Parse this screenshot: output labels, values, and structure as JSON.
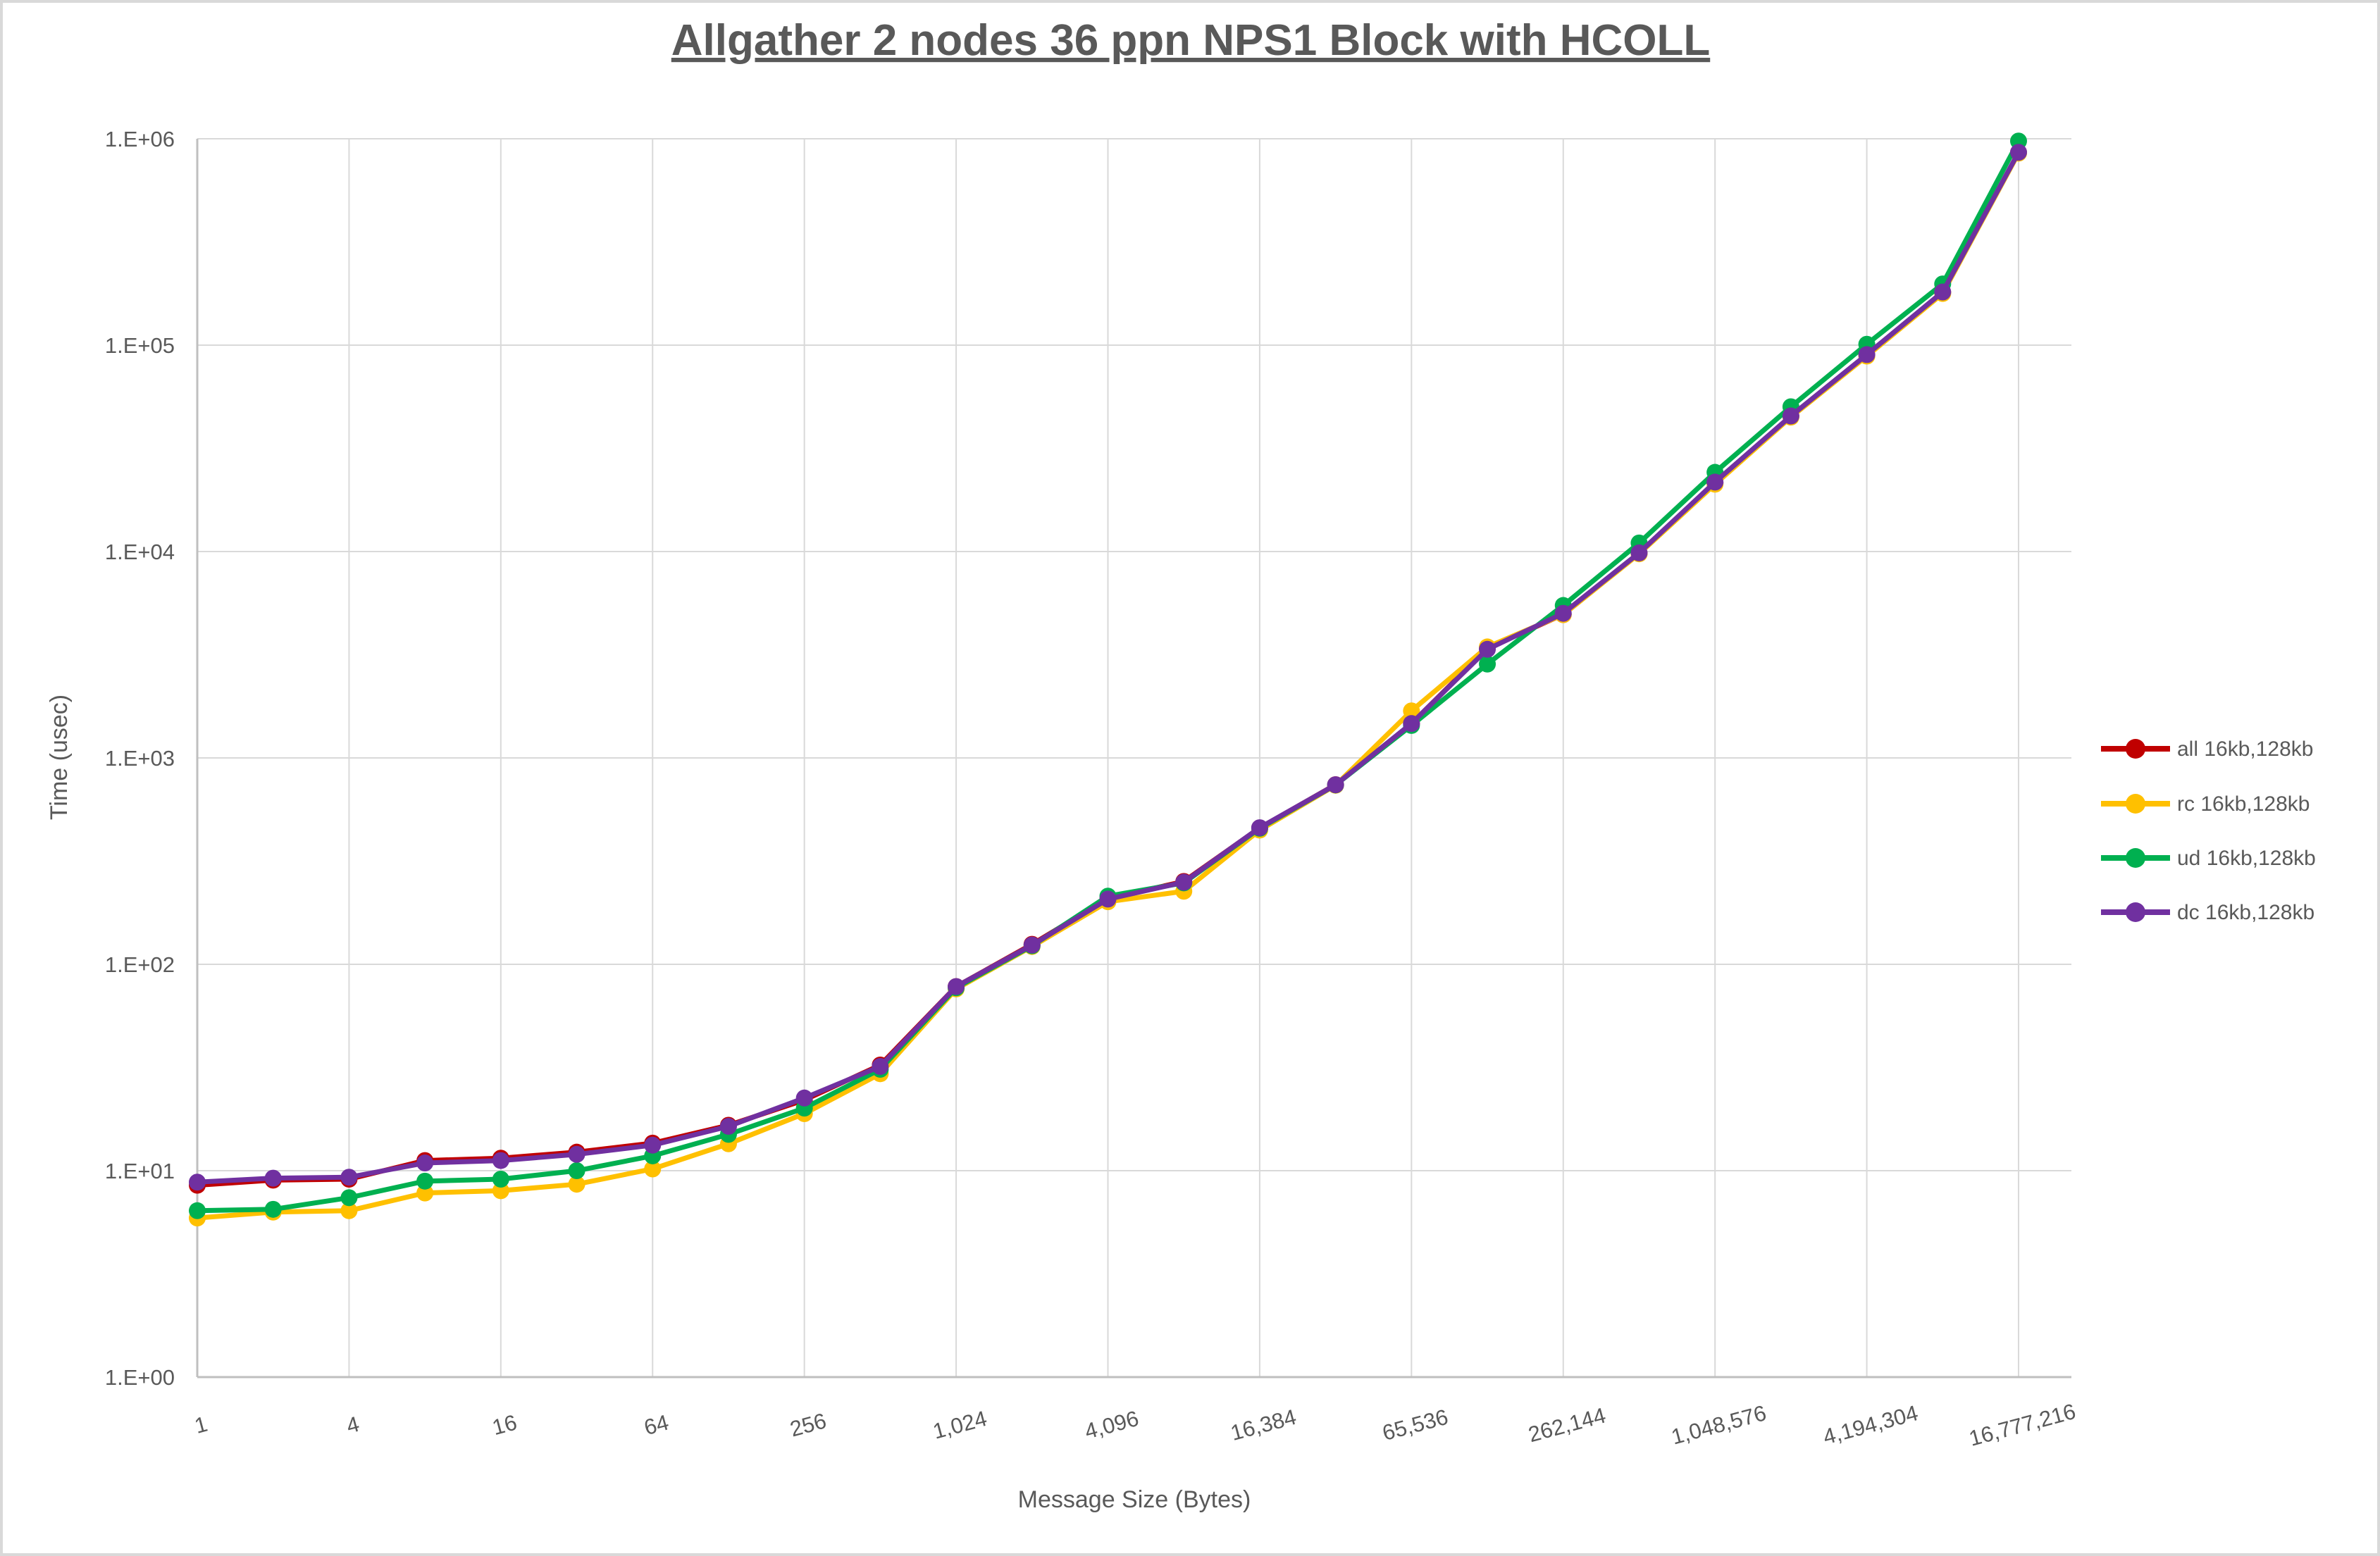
{
  "page": {
    "background": "#FFFFFF",
    "border_color": "#D9D9D9",
    "text_color": "#595959"
  },
  "chart_data": {
    "type": "line",
    "title": "Allgather 2 nodes 36 ppn NPS1 Block with HCOLL",
    "xlabel": "Message Size (Bytes)",
    "ylabel": "Time (usec)",
    "x_scale": "log2-categories",
    "y_scale": "log10",
    "ylim": [
      1,
      1000000
    ],
    "grid": true,
    "legend_position": "right",
    "grid_color": "#D9D9D9",
    "axis_color": "#BFBFBF",
    "y_tick_labels": [
      "1.E+00",
      "1.E+01",
      "1.E+02",
      "1.E+03",
      "1.E+04",
      "1.E+05",
      "1.E+06"
    ],
    "x_tick_labels": [
      "1",
      "4",
      "16",
      "64",
      "256",
      "1,024",
      "4,096",
      "16,384",
      "65,536",
      "262,144",
      "1,048,576",
      "4,194,304",
      "16,777,216"
    ],
    "categories": [
      1,
      2,
      4,
      8,
      16,
      32,
      64,
      128,
      256,
      512,
      1024,
      2048,
      4096,
      8192,
      16384,
      32768,
      65536,
      131072,
      262144,
      524288,
      1048576,
      2097152,
      4194304,
      8388608,
      16777216
    ],
    "series": [
      {
        "name": "all 16kb,128kb",
        "color": "#C00000",
        "values": [
          8.5,
          9.0,
          9.1,
          11.2,
          11.5,
          12.3,
          13.6,
          16.6,
          22.0,
          32.5,
          78,
          125,
          208,
          252,
          458,
          742,
          1465,
          3400,
          4950,
          9800,
          21500,
          45200,
          89500,
          180000,
          858000
        ]
      },
      {
        "name": "rc 16kb,128kb",
        "color": "#FFC000",
        "values": [
          5.9,
          6.3,
          6.4,
          7.8,
          8.0,
          8.6,
          10.2,
          13.5,
          18.9,
          29.5,
          76,
          122,
          201,
          226,
          447,
          737,
          1690,
          3450,
          4950,
          9750,
          21200,
          44800,
          88500,
          178000,
          852000
        ]
      },
      {
        "name": "ud 16kb,128kb",
        "color": "#00B050",
        "values": [
          6.4,
          6.5,
          7.4,
          8.9,
          9.1,
          10.0,
          11.8,
          15.0,
          20.1,
          31.0,
          77,
          123,
          214,
          248,
          456,
          740,
          1437,
          2850,
          5480,
          11000,
          24200,
          50300,
          101000,
          198000,
          975000
        ]
      },
      {
        "name": "dc 16kb,128kb",
        "color": "#7030A0",
        "values": [
          8.8,
          9.2,
          9.3,
          10.9,
          11.2,
          12.0,
          13.3,
          16.4,
          22.5,
          32.0,
          78,
          124,
          207,
          250,
          459,
          741,
          1468,
          3360,
          5020,
          9850,
          21700,
          45400,
          90000,
          181000,
          860000
        ]
      }
    ]
  }
}
